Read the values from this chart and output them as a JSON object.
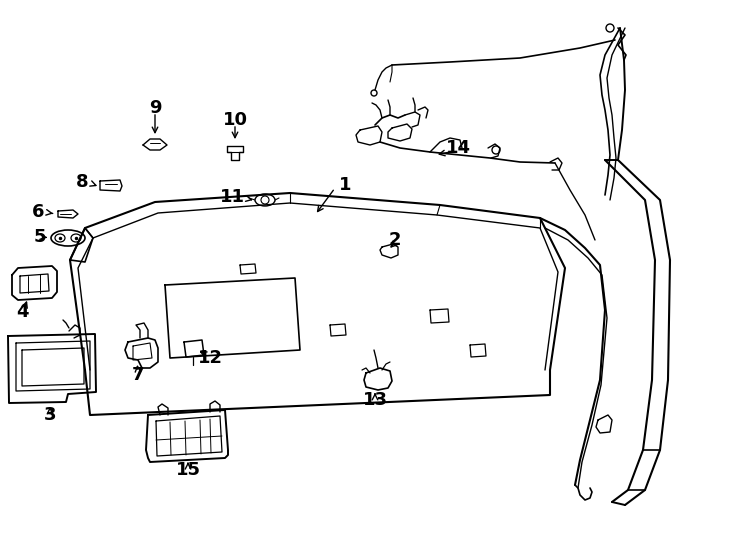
{
  "bg_color": "#ffffff",
  "line_color": "#000000",
  "figure_width": 7.34,
  "figure_height": 5.4,
  "dpi": 100
}
